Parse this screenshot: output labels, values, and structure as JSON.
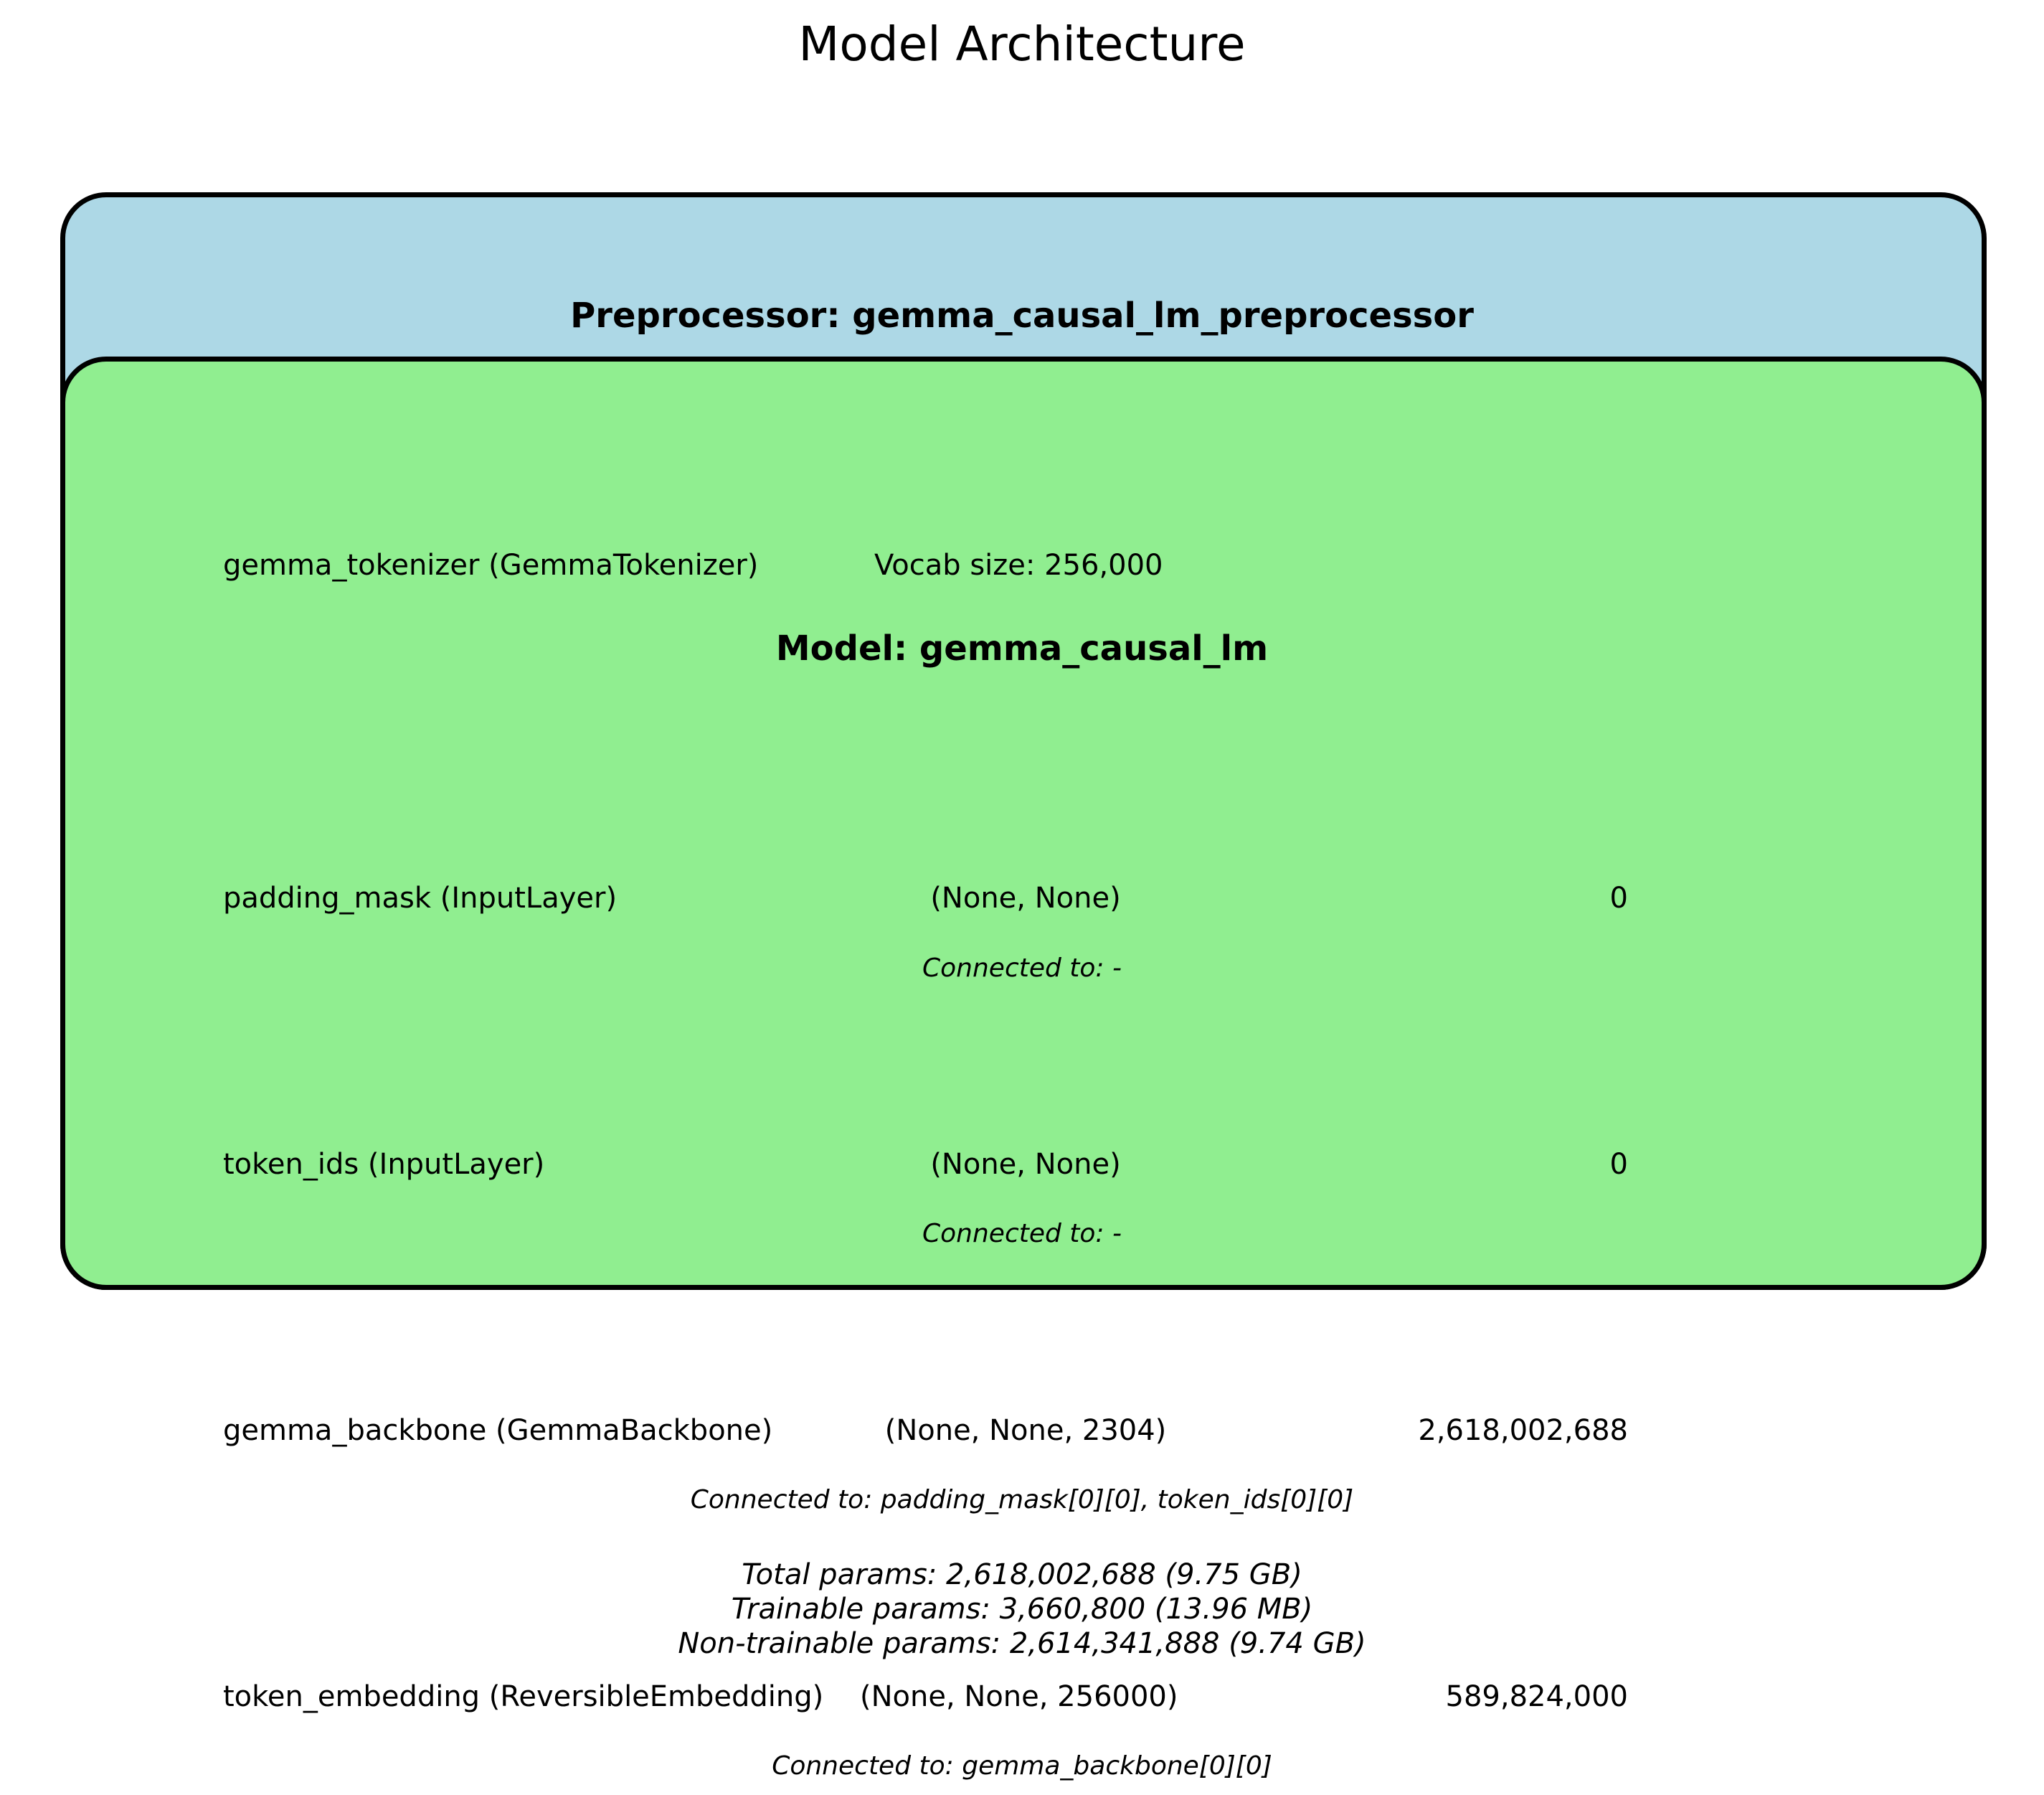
{
  "title": "Model Architecture",
  "preprocessor": {
    "title": "Preprocessor: gemma_causal_lm_preprocessor",
    "color": "#add8e6",
    "tokenizer": {
      "name": "gemma_tokenizer (GemmaTokenizer)",
      "info": "Vocab size: 256,000"
    }
  },
  "model": {
    "title": "Model: gemma_causal_lm",
    "color": "#90ee90",
    "layers": [
      {
        "name": "padding_mask (InputLayer)",
        "shape": "(None, None)",
        "params": "0",
        "connected": "Connected to: -"
      },
      {
        "name": "token_ids (InputLayer)",
        "shape": "(None, None)",
        "params": "0",
        "connected": "Connected to: -"
      },
      {
        "name": "gemma_backbone (GemmaBackbone)",
        "shape": "(None, None, 2304)",
        "params": "2,618,002,688",
        "connected": "Connected to: padding_mask[0][0], token_ids[0][0]"
      },
      {
        "name": "token_embedding (ReversibleEmbedding)",
        "shape": "(None, None, 256000)",
        "params": "589,824,000",
        "connected": "Connected to: gemma_backbone[0][0]"
      }
    ]
  },
  "summary": {
    "total": "Total params: 2,618,002,688 (9.75 GB)",
    "trainable": "Trainable params: 3,660,800 (13.96 MB)",
    "non_trainable": "Non-trainable params: 2,614,341,888 (9.74 GB)"
  }
}
